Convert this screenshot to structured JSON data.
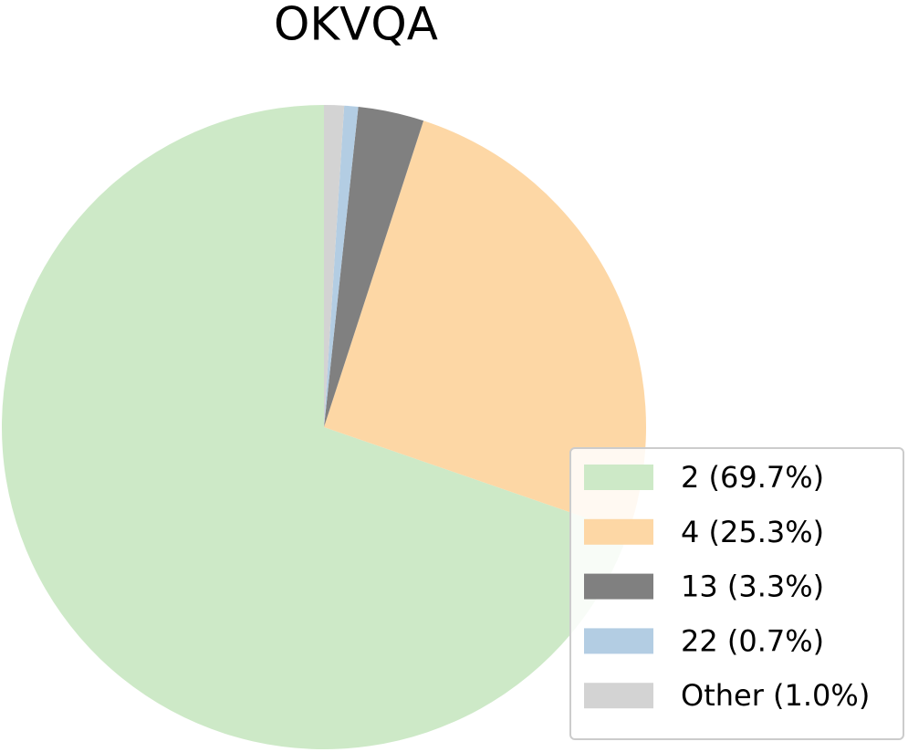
{
  "chart_data": {
    "type": "pie",
    "title": "OKVQA",
    "categories": [
      "2",
      "4",
      "13",
      "22",
      "Other"
    ],
    "values": [
      69.7,
      25.3,
      3.3,
      0.7,
      1.0
    ],
    "legend_labels": [
      "2 (69.7%)",
      "4 (25.3%)",
      "13 (3.3%)",
      "22 (0.7%)",
      "Other (1.0%)"
    ],
    "colors": [
      "#cde9c7",
      "#fdd7a5",
      "#808080",
      "#b3cde3",
      "#d3d3d3"
    ],
    "start_angle": 90,
    "counterclock": true,
    "legend": "lower right"
  }
}
